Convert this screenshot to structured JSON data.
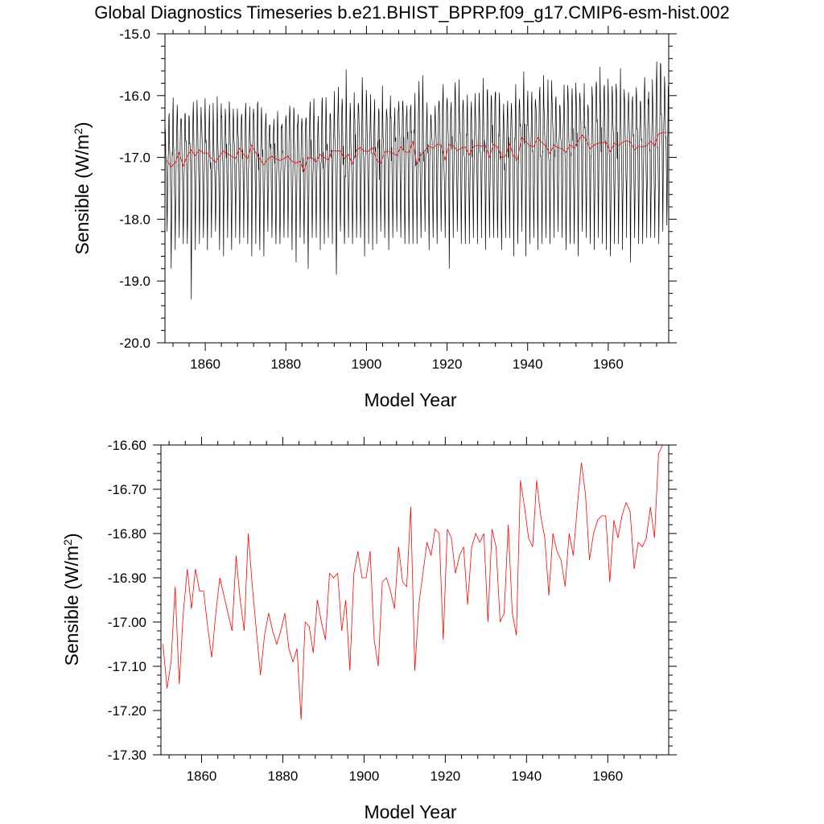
{
  "title": "Global Diagnostics Timeseries b.e21.BHIST_BPRP.f09_g17.CMIP6-esm-hist.002",
  "colors": {
    "monthly": "#000000",
    "annual": "#ff0000",
    "frame": "#000000"
  },
  "chart_data": [
    {
      "type": "line",
      "xlabel": "Model Year",
      "ylabel_main": "Sensible (W/m",
      "ylabel_sup": "2",
      "ylabel_close": ")",
      "xlim": [
        1850,
        1975
      ],
      "ylim": [
        -20.0,
        -15.0
      ],
      "xticks": [
        1860,
        1880,
        1900,
        1920,
        1940,
        1960
      ],
      "xtick_labels": [
        "1860",
        "1880",
        "1900",
        "1920",
        "1940",
        "1960"
      ],
      "yticks": [
        -20.0,
        -19.0,
        -18.0,
        -17.0,
        -16.0,
        -15.0
      ],
      "ytick_labels": [
        "-20.0",
        "-19.0",
        "-18.0",
        "-17.0",
        "-16.0",
        "-15.0"
      ],
      "grid": false,
      "series": [
        {
          "color": "#000000",
          "note_shape": "monthly",
          "seasonal_min": [
            -18.2,
            -18.8,
            -18.5,
            -18.3,
            -18.4,
            -18.4,
            -19.3,
            -18.5,
            -18.4,
            -18.3,
            -18.5,
            -18.3,
            -18.2,
            -18.5,
            -18.6,
            -18.3,
            -18.5,
            -18.3,
            -18.4,
            -18.3,
            -18.4,
            -18.6,
            -18.4,
            -18.5,
            -18.6,
            -18.2,
            -18.3,
            -18.4,
            -18.4,
            -18.3,
            -18.3,
            -18.5,
            -18.7,
            -18.3,
            -18.4,
            -18.8,
            -18.3,
            -18.3,
            -18.5,
            -18.4,
            -18.3,
            -18.4,
            -18.9,
            -18.2,
            -18.4,
            -18.3,
            -18.4,
            -18.3,
            -18.3,
            -18.6,
            -18.4,
            -18.5,
            -18.4,
            -18.2,
            -18.3,
            -18.5,
            -18.3,
            -18.2,
            -18.3,
            -18.4,
            -18.4,
            -18.4,
            -18.4,
            -18.3,
            -18.2,
            -18.5,
            -18.3,
            -18.4,
            -18.2,
            -18.3,
            -18.8,
            -18.3,
            -18.2,
            -18.4,
            -18.4,
            -18.4,
            -18.3,
            -18.4,
            -18.3,
            -18.5,
            -18.3,
            -18.3,
            -18.3,
            -18.5,
            -18.3,
            -18.3,
            -18.6,
            -18.4,
            -18.2,
            -18.6,
            -18.4,
            -18.3,
            -18.5,
            -18.4,
            -18.3,
            -18.4,
            -18.3,
            -18.2,
            -18.3,
            -18.5,
            -18.4,
            -18.4,
            -18.6,
            -18.2,
            -18.3,
            -18.4,
            -18.5,
            -18.3,
            -18.4,
            -18.5,
            -18.6,
            -18.4,
            -18.4,
            -18.5,
            -18.3,
            -18.7,
            -18.3,
            -18.4,
            -18.4,
            -18.3,
            -18.3,
            -18.3,
            -18.4,
            -18.2,
            -18.1
          ],
          "seasonal_max": [
            -16.2,
            -16.1,
            -16.0,
            -16.0,
            -16.1,
            -16.1,
            -16.2,
            -16.0,
            -16.1,
            -16.0,
            -16.2,
            -16.1,
            -16.0,
            -16.1,
            -16.0,
            -16.0,
            -16.1,
            -16.0,
            -16.2,
            -16.1,
            -16.1,
            -16.0,
            -15.9,
            -16.0,
            -16.1,
            -16.1,
            -16.2,
            -16.1,
            -16.2,
            -16.1,
            -16.0,
            -16.1,
            -16.1,
            -16.2,
            -16.1,
            -15.9,
            -16.0,
            -16.1,
            -16.1,
            -16.0,
            -16.1,
            -16.0,
            -15.9,
            -15.8,
            -15.5,
            -16.0,
            -15.8,
            -16.0,
            -15.7,
            -15.9,
            -16.0,
            -15.9,
            -16.0,
            -15.7,
            -16.1,
            -15.9,
            -16.0,
            -15.8,
            -16.0,
            -15.9,
            -15.8,
            -16.0,
            -15.9,
            -15.6,
            -15.9,
            -16.0,
            -16.0,
            -15.8,
            -15.9,
            -15.8,
            -15.9,
            -15.8,
            -15.7,
            -15.9,
            -16.0,
            -15.8,
            -15.9,
            -15.8,
            -15.7,
            -15.9,
            -15.8,
            -15.6,
            -15.8,
            -15.9,
            -15.8,
            -15.6,
            -15.8,
            -15.7,
            -15.8,
            -15.6,
            -15.6,
            -15.7,
            -15.8,
            -15.6,
            -15.8,
            -15.7,
            -15.6,
            -15.7,
            -15.8,
            -15.6,
            -15.8,
            -15.7,
            -15.5,
            -15.8,
            -15.7,
            -15.8,
            -15.6,
            -15.4,
            -15.6,
            -15.7,
            -15.8,
            -15.6,
            -15.7,
            -15.5,
            -15.7,
            -15.8,
            -15.6,
            -15.7,
            -15.8,
            -15.6,
            -15.7,
            -15.6,
            -15.3,
            -15.5,
            -15.4
          ]
        },
        {
          "color": "#ff0000",
          "note_shape": "annual",
          "x": [
            1850.5,
            1851.5,
            1852.5,
            1853.5,
            1854.5,
            1855.5,
            1856.5,
            1857.5,
            1858.5,
            1859.5,
            1860.5,
            1861.5,
            1862.5,
            1863.5,
            1864.5,
            1865.5,
            1866.5,
            1867.5,
            1868.5,
            1869.5,
            1870.5,
            1871.5,
            1872.5,
            1873.5,
            1874.5,
            1875.5,
            1876.5,
            1877.5,
            1878.5,
            1879.5,
            1880.5,
            1881.5,
            1882.5,
            1883.5,
            1884.5,
            1885.5,
            1886.5,
            1887.5,
            1888.5,
            1889.5,
            1890.5,
            1891.5,
            1892.5,
            1893.5,
            1894.5,
            1895.5,
            1896.5,
            1897.5,
            1898.5,
            1899.5,
            1900.5,
            1901.5,
            1902.5,
            1903.5,
            1904.5,
            1905.5,
            1906.5,
            1907.5,
            1908.5,
            1909.5,
            1910.5,
            1911.5,
            1912.5,
            1913.5,
            1914.5,
            1915.5,
            1916.5,
            1917.5,
            1918.5,
            1919.5,
            1920.5,
            1921.5,
            1922.5,
            1923.5,
            1924.5,
            1925.5,
            1926.5,
            1927.5,
            1928.5,
            1929.5,
            1930.5,
            1931.5,
            1932.5,
            1933.5,
            1934.5,
            1935.5,
            1936.5,
            1937.5,
            1938.5,
            1939.5,
            1940.5,
            1941.5,
            1942.5,
            1943.5,
            1944.5,
            1945.5,
            1946.5,
            1947.5,
            1948.5,
            1949.5,
            1950.5,
            1951.5,
            1952.5,
            1953.5,
            1954.5,
            1955.5,
            1956.5,
            1957.5,
            1958.5,
            1959.5,
            1960.5,
            1961.5,
            1962.5,
            1963.5,
            1964.5,
            1965.5,
            1966.5,
            1967.5,
            1968.5,
            1969.5,
            1970.5,
            1971.5,
            1972.5,
            1973.5,
            1974.5
          ],
          "y": [
            -17.05,
            -17.15,
            -17.09,
            -16.92,
            -17.14,
            -16.98,
            -16.88,
            -16.97,
            -16.88,
            -16.93,
            -16.93,
            -17.01,
            -17.08,
            -16.98,
            -16.9,
            -16.94,
            -16.98,
            -17.02,
            -16.85,
            -16.95,
            -17.02,
            -16.8,
            -16.92,
            -17.02,
            -17.12,
            -17.03,
            -16.98,
            -17.02,
            -17.05,
            -17.02,
            -16.98,
            -17.06,
            -17.09,
            -17.06,
            -17.22,
            -17.0,
            -17.01,
            -17.07,
            -16.95,
            -17.0,
            -17.04,
            -16.89,
            -16.9,
            -16.89,
            -17.02,
            -16.95,
            -17.11,
            -16.89,
            -16.84,
            -16.9,
            -16.9,
            -16.84,
            -17.04,
            -17.1,
            -16.91,
            -16.9,
            -16.93,
            -16.97,
            -16.83,
            -16.91,
            -16.92,
            -16.74,
            -17.11,
            -16.96,
            -16.89,
            -16.82,
            -16.85,
            -16.79,
            -16.8,
            -17.04,
            -16.79,
            -16.81,
            -16.89,
            -16.85,
            -16.83,
            -16.96,
            -16.83,
            -16.8,
            -16.82,
            -16.8,
            -17.0,
            -16.79,
            -16.83,
            -17.0,
            -16.98,
            -16.78,
            -16.98,
            -17.03,
            -16.68,
            -16.74,
            -16.81,
            -16.83,
            -16.68,
            -16.76,
            -16.81,
            -16.94,
            -16.8,
            -16.84,
            -16.86,
            -16.92,
            -16.8,
            -16.85,
            -16.74,
            -16.64,
            -16.71,
            -16.86,
            -16.8,
            -16.77,
            -16.76,
            -16.76,
            -16.91,
            -16.77,
            -16.81,
            -16.76,
            -16.73,
            -16.75,
            -16.88,
            -16.82,
            -16.83,
            -16.81,
            -16.74,
            -16.81,
            -16.62,
            -16.6,
            -16.6
          ]
        }
      ]
    },
    {
      "type": "line",
      "xlabel": "Model Year",
      "ylabel_main": "Sensible (W/m",
      "ylabel_sup": "2",
      "ylabel_close": ")",
      "xlim": [
        1850,
        1975
      ],
      "ylim": [
        -17.3,
        -16.6
      ],
      "xticks": [
        1860,
        1880,
        1900,
        1920,
        1940,
        1960
      ],
      "xtick_labels": [
        "1860",
        "1880",
        "1900",
        "1920",
        "1940",
        "1960"
      ],
      "yticks": [
        -17.3,
        -17.2,
        -17.1,
        -17.0,
        -16.9,
        -16.8,
        -16.7,
        -16.6
      ],
      "ytick_labels": [
        "-17.30",
        "-17.20",
        "-17.10",
        "-17.00",
        "-16.90",
        "-16.80",
        "-16.70",
        "-16.60"
      ],
      "grid": false,
      "series": [
        {
          "color": "#ff0000",
          "x": [
            1850.5,
            1851.5,
            1852.5,
            1853.5,
            1854.5,
            1855.5,
            1856.5,
            1857.5,
            1858.5,
            1859.5,
            1860.5,
            1861.5,
            1862.5,
            1863.5,
            1864.5,
            1865.5,
            1866.5,
            1867.5,
            1868.5,
            1869.5,
            1870.5,
            1871.5,
            1872.5,
            1873.5,
            1874.5,
            1875.5,
            1876.5,
            1877.5,
            1878.5,
            1879.5,
            1880.5,
            1881.5,
            1882.5,
            1883.5,
            1884.5,
            1885.5,
            1886.5,
            1887.5,
            1888.5,
            1889.5,
            1890.5,
            1891.5,
            1892.5,
            1893.5,
            1894.5,
            1895.5,
            1896.5,
            1897.5,
            1898.5,
            1899.5,
            1900.5,
            1901.5,
            1902.5,
            1903.5,
            1904.5,
            1905.5,
            1906.5,
            1907.5,
            1908.5,
            1909.5,
            1910.5,
            1911.5,
            1912.5,
            1913.5,
            1914.5,
            1915.5,
            1916.5,
            1917.5,
            1918.5,
            1919.5,
            1920.5,
            1921.5,
            1922.5,
            1923.5,
            1924.5,
            1925.5,
            1926.5,
            1927.5,
            1928.5,
            1929.5,
            1930.5,
            1931.5,
            1932.5,
            1933.5,
            1934.5,
            1935.5,
            1936.5,
            1937.5,
            1938.5,
            1939.5,
            1940.5,
            1941.5,
            1942.5,
            1943.5,
            1944.5,
            1945.5,
            1946.5,
            1947.5,
            1948.5,
            1949.5,
            1950.5,
            1951.5,
            1952.5,
            1953.5,
            1954.5,
            1955.5,
            1956.5,
            1957.5,
            1958.5,
            1959.5,
            1960.5,
            1961.5,
            1962.5,
            1963.5,
            1964.5,
            1965.5,
            1966.5,
            1967.5,
            1968.5,
            1969.5,
            1970.5,
            1971.5,
            1972.5,
            1973.5,
            1974.5
          ],
          "y": [
            -17.05,
            -17.15,
            -17.09,
            -16.92,
            -17.14,
            -16.98,
            -16.88,
            -16.97,
            -16.88,
            -16.93,
            -16.93,
            -17.01,
            -17.08,
            -16.98,
            -16.9,
            -16.94,
            -16.98,
            -17.02,
            -16.85,
            -16.95,
            -17.02,
            -16.8,
            -16.92,
            -17.02,
            -17.12,
            -17.03,
            -16.98,
            -17.02,
            -17.05,
            -17.02,
            -16.98,
            -17.06,
            -17.09,
            -17.06,
            -17.22,
            -17.0,
            -17.01,
            -17.07,
            -16.95,
            -17.0,
            -17.04,
            -16.89,
            -16.9,
            -16.89,
            -17.02,
            -16.95,
            -17.11,
            -16.89,
            -16.84,
            -16.9,
            -16.9,
            -16.84,
            -17.04,
            -17.1,
            -16.91,
            -16.9,
            -16.93,
            -16.97,
            -16.83,
            -16.91,
            -16.92,
            -16.74,
            -17.11,
            -16.96,
            -16.89,
            -16.82,
            -16.85,
            -16.79,
            -16.8,
            -17.04,
            -16.79,
            -16.81,
            -16.89,
            -16.85,
            -16.83,
            -16.96,
            -16.83,
            -16.8,
            -16.82,
            -16.8,
            -17.0,
            -16.79,
            -16.83,
            -17.0,
            -16.98,
            -16.78,
            -16.98,
            -17.03,
            -16.68,
            -16.74,
            -16.81,
            -16.83,
            -16.68,
            -16.76,
            -16.81,
            -16.94,
            -16.8,
            -16.84,
            -16.86,
            -16.92,
            -16.8,
            -16.85,
            -16.74,
            -16.64,
            -16.71,
            -16.86,
            -16.8,
            -16.77,
            -16.76,
            -16.76,
            -16.91,
            -16.77,
            -16.81,
            -16.76,
            -16.73,
            -16.75,
            -16.88,
            -16.82,
            -16.83,
            -16.81,
            -16.74,
            -16.81,
            -16.62,
            -16.6,
            -16.6
          ]
        }
      ]
    }
  ]
}
